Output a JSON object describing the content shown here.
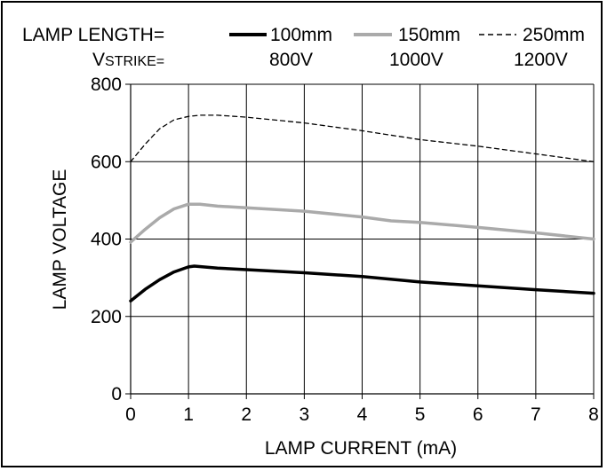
{
  "chart_data": {
    "type": "line",
    "xlabel": "LAMP CURRENT (mA)",
    "ylabel": "LAMP VOLTAGE",
    "xlim": [
      0,
      8
    ],
    "ylim": [
      0,
      800
    ],
    "xticks": [
      "0",
      "1",
      "2",
      "3",
      "4",
      "5",
      "6",
      "7",
      "8"
    ],
    "yticks": [
      "0",
      "200",
      "400",
      "600",
      "800"
    ],
    "grid": true,
    "legend": {
      "placement": "top",
      "length_label": "LAMP LENGTH=",
      "vstrike_v": "V",
      "vstrike_rest": "STRIKE=",
      "entries": [
        {
          "name": "100mm",
          "vstrike": "800V"
        },
        {
          "name": "150mm",
          "vstrike": "1000V"
        },
        {
          "name": "250mm",
          "vstrike": "1200V"
        }
      ]
    },
    "series": [
      {
        "name": "100mm",
        "style": "solid",
        "color": "#000000",
        "x": [
          0,
          0.25,
          0.5,
          0.75,
          1.0,
          1.1,
          1.5,
          2,
          3,
          4,
          5,
          6,
          7,
          8
        ],
        "values": [
          240,
          270,
          295,
          315,
          328,
          330,
          325,
          321,
          313,
          303,
          289,
          279,
          269,
          260
        ]
      },
      {
        "name": "150mm",
        "style": "solid",
        "color": "#aaaaaa",
        "x": [
          0,
          0.25,
          0.5,
          0.75,
          1.0,
          1.2,
          1.5,
          2,
          3,
          4,
          4.5,
          5,
          6,
          7,
          8
        ],
        "values": [
          392,
          425,
          455,
          478,
          490,
          490,
          485,
          481,
          472,
          457,
          447,
          443,
          430,
          416,
          400
        ]
      },
      {
        "name": "250mm",
        "style": "dashed",
        "color": "#000000",
        "x": [
          0,
          0.25,
          0.5,
          0.75,
          1.0,
          1.2,
          1.5,
          2,
          3,
          4,
          5,
          6,
          7,
          8
        ],
        "values": [
          600,
          645,
          685,
          708,
          717,
          720,
          720,
          715,
          700,
          680,
          657,
          640,
          620,
          600
        ]
      }
    ]
  }
}
